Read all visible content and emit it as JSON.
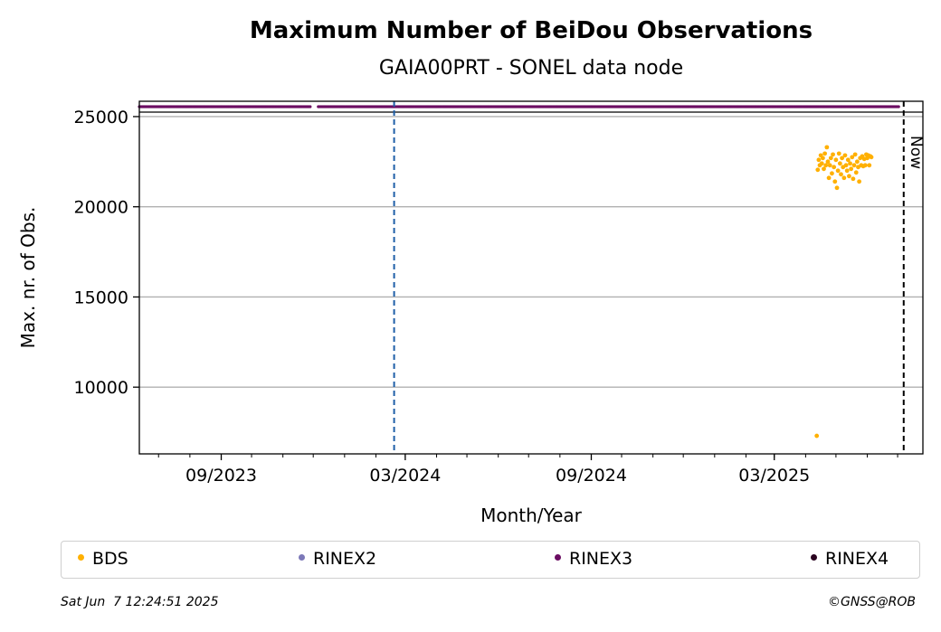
{
  "chart_data": {
    "type": "scatter",
    "title": "Maximum Number of BeiDou Observations",
    "subtitle": "GAIA00PRT - SONEL data node",
    "xlabel": "Month/Year",
    "ylabel": "Max. nr. of Obs.",
    "xlim": [
      "2023-06-12",
      "2025-07-26"
    ],
    "ylim": [
      6300,
      25850
    ],
    "y_ticks": [
      10000,
      15000,
      20000,
      25000
    ],
    "x_ticks": [
      {
        "date": "2023-09-01",
        "label": "09/2023"
      },
      {
        "date": "2024-03-01",
        "label": "03/2024"
      },
      {
        "date": "2024-09-01",
        "label": "09/2024"
      },
      {
        "date": "2025-03-01",
        "label": "03/2025"
      }
    ],
    "grid": "horizontal",
    "now_label": "Now",
    "now_date": "2025-07-07",
    "marker_date": "2024-02-19",
    "rinex3_level": 25550,
    "rinex3_segments": [
      [
        "2023-06-12",
        "2023-11-28"
      ],
      [
        "2023-12-06",
        "2025-07-02"
      ]
    ],
    "bds_points": [
      [
        "2025-04-12",
        7300
      ],
      [
        "2025-04-13",
        22050
      ],
      [
        "2025-04-14",
        22600
      ],
      [
        "2025-04-15",
        22300
      ],
      [
        "2025-04-16",
        22850
      ],
      [
        "2025-04-17",
        22400
      ],
      [
        "2025-04-18",
        22700
      ],
      [
        "2025-04-19",
        22100
      ],
      [
        "2025-04-20",
        22950
      ],
      [
        "2025-04-21",
        22300
      ],
      [
        "2025-04-22",
        23300
      ],
      [
        "2025-04-23",
        22500
      ],
      [
        "2025-04-24",
        21600
      ],
      [
        "2025-04-25",
        22300
      ],
      [
        "2025-04-26",
        22700
      ],
      [
        "2025-04-27",
        21850
      ],
      [
        "2025-04-28",
        22900
      ],
      [
        "2025-04-29",
        22200
      ],
      [
        "2025-04-30",
        21400
      ],
      [
        "2025-05-01",
        22600
      ],
      [
        "2025-05-02",
        21050
      ],
      [
        "2025-05-03",
        22000
      ],
      [
        "2025-05-04",
        22950
      ],
      [
        "2025-05-05",
        22400
      ],
      [
        "2025-05-06",
        21800
      ],
      [
        "2025-05-07",
        22700
      ],
      [
        "2025-05-08",
        22200
      ],
      [
        "2025-05-09",
        21600
      ],
      [
        "2025-05-10",
        22850
      ],
      [
        "2025-05-11",
        22300
      ],
      [
        "2025-05-12",
        22000
      ],
      [
        "2025-05-13",
        22600
      ],
      [
        "2025-05-14",
        21700
      ],
      [
        "2025-05-15",
        22400
      ],
      [
        "2025-05-16",
        22100
      ],
      [
        "2025-05-17",
        22750
      ],
      [
        "2025-05-18",
        21550
      ],
      [
        "2025-05-19",
        22300
      ],
      [
        "2025-05-20",
        22900
      ],
      [
        "2025-05-21",
        21900
      ],
      [
        "2025-05-22",
        22500
      ],
      [
        "2025-05-23",
        22200
      ],
      [
        "2025-05-24",
        21400
      ],
      [
        "2025-05-25",
        22700
      ],
      [
        "2025-05-26",
        22300
      ],
      [
        "2025-05-27",
        22800
      ],
      [
        "2025-05-28",
        22250
      ],
      [
        "2025-05-29",
        22650
      ],
      [
        "2025-05-30",
        22300
      ],
      [
        "2025-05-31",
        22900
      ],
      [
        "2025-06-01",
        22700
      ],
      [
        "2025-06-02",
        22850
      ],
      [
        "2025-06-03",
        22300
      ],
      [
        "2025-06-04",
        22800
      ],
      [
        "2025-06-05",
        22750
      ]
    ],
    "series": [
      {
        "name": "BDS",
        "color": "#ffb000"
      },
      {
        "name": "RINEX2",
        "color": "#7c78b8"
      },
      {
        "name": "RINEX3",
        "color": "#6b0d62"
      },
      {
        "name": "RINEX4",
        "color": "#2a0320"
      }
    ],
    "colors": {
      "marker_line": "#1f5fa8",
      "now_line": "#000000",
      "grid": "#b0b0b0"
    }
  },
  "footer": {
    "timestamp": "Sat Jun  7 12:24:51 2025",
    "copyright": "©GNSS@ROB"
  }
}
